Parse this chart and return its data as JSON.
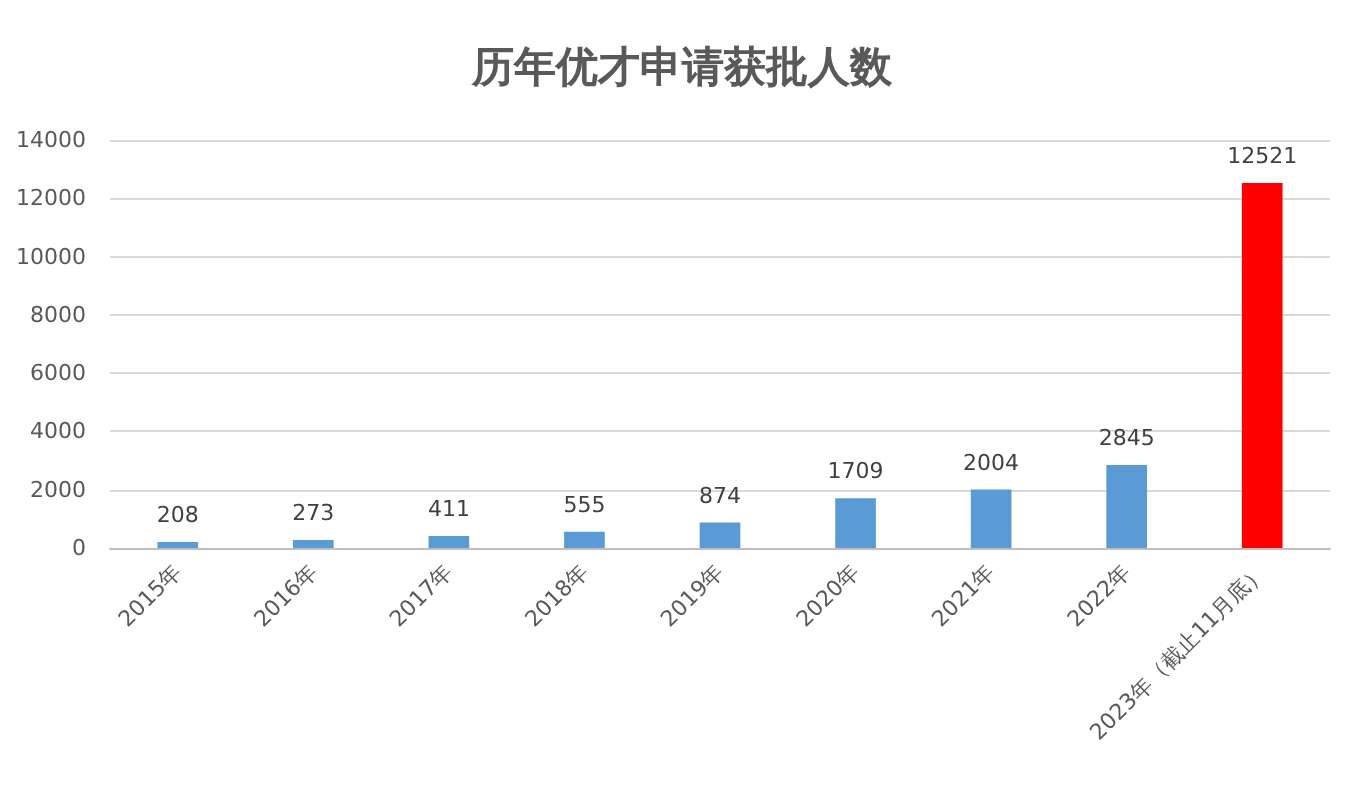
{
  "chart_data": {
    "type": "bar",
    "title": "历年优才申请获批人数",
    "categories": [
      "2015年",
      "2016年",
      "2017年",
      "2018年",
      "2019年",
      "2020年",
      "2021年",
      "2022年",
      "2023年（截止11月底）"
    ],
    "values": [
      208,
      273,
      411,
      555,
      874,
      1709,
      2004,
      2845,
      12521
    ],
    "colors": [
      "#5b9bd5",
      "#5b9bd5",
      "#5b9bd5",
      "#5b9bd5",
      "#5b9bd5",
      "#5b9bd5",
      "#5b9bd5",
      "#5b9bd5",
      "#ff0000"
    ],
    "ylim": [
      0,
      14000
    ],
    "yticks": [
      0,
      2000,
      4000,
      6000,
      8000,
      10000,
      12000,
      14000
    ],
    "grid": "y",
    "data_labels": true
  }
}
